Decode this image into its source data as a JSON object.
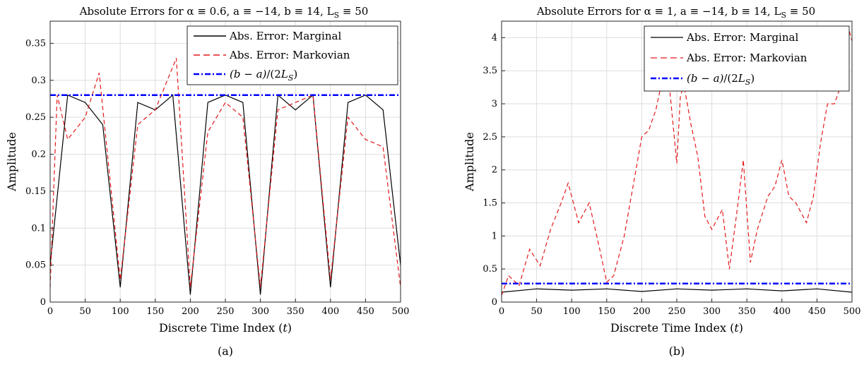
{
  "chart_data": [
    {
      "type": "line",
      "title": "Absolute Errors for α ≡ 0.6, a ≡ −14, b ≡ 14, L",
      "title_sub": "S",
      "title_tail": " ≡ 50",
      "xlabel": "Discrete Time Index (t)",
      "ylabel": "Amplitude",
      "xlim": [
        0,
        500
      ],
      "ylim": [
        0,
        0.38
      ],
      "xticks": [
        0,
        50,
        100,
        150,
        200,
        250,
        300,
        350,
        400,
        450,
        500
      ],
      "yticks": [
        0,
        0.05,
        0.1,
        0.15,
        0.2,
        0.25,
        0.3,
        0.35
      ],
      "ytick_labels": [
        "0",
        "0.05",
        "0.1",
        "0.15",
        "0.2",
        "0.25",
        "0.3",
        "0.35"
      ],
      "grid": true,
      "legend_position": "top-right",
      "caption": "(a)",
      "series": [
        {
          "name": "Abs. Error: Marginal",
          "color": "#000000",
          "style": "solid",
          "x": [
            0,
            25,
            50,
            75,
            100,
            125,
            150,
            175,
            200,
            225,
            250,
            275,
            300,
            325,
            350,
            375,
            400,
            425,
            450,
            475,
            500
          ],
          "y": [
            0.05,
            0.28,
            0.27,
            0.24,
            0.02,
            0.27,
            0.26,
            0.28,
            0.01,
            0.27,
            0.28,
            0.27,
            0.01,
            0.28,
            0.26,
            0.28,
            0.02,
            0.27,
            0.28,
            0.26,
            0.05
          ]
        },
        {
          "name": "Abs. Error: Markovian",
          "color": "#e41a1c",
          "style": "dashed",
          "x": [
            0,
            10,
            25,
            50,
            70,
            100,
            125,
            150,
            180,
            200,
            225,
            250,
            275,
            300,
            325,
            350,
            375,
            400,
            425,
            450,
            475,
            500
          ],
          "y": [
            0.02,
            0.28,
            0.22,
            0.25,
            0.31,
            0.03,
            0.24,
            0.26,
            0.33,
            0.02,
            0.23,
            0.27,
            0.25,
            0.02,
            0.26,
            0.27,
            0.28,
            0.03,
            0.25,
            0.22,
            0.21,
            0.02
          ]
        },
        {
          "name": "(b − a)/(2L_S)",
          "color": "#0000ff",
          "style": "dashdot",
          "x": [
            0,
            500
          ],
          "y": [
            0.28,
            0.28
          ]
        }
      ]
    },
    {
      "type": "line",
      "title": "Absolute Errors for α ≡ 1, a ≡ −14, b ≡ 14, L",
      "title_sub": "S",
      "title_tail": " ≡ 50",
      "xlabel": "Discrete Time Index (t)",
      "ylabel": "Amplitude",
      "xlim": [
        0,
        500
      ],
      "ylim": [
        0,
        4.25
      ],
      "xticks": [
        0,
        50,
        100,
        150,
        200,
        250,
        300,
        350,
        400,
        450,
        500
      ],
      "yticks": [
        0,
        0.5,
        1,
        1.5,
        2,
        2.5,
        3,
        3.5,
        4
      ],
      "ytick_labels": [
        "0",
        "0.5",
        "1",
        "1.5",
        "2",
        "2.5",
        "3",
        "3.5",
        "4"
      ],
      "grid": true,
      "legend_position": "top-right",
      "caption": "(b)",
      "series": [
        {
          "name": "Abs. Error: Marginal",
          "color": "#000000",
          "style": "solid",
          "x": [
            0,
            50,
            100,
            150,
            200,
            250,
            300,
            350,
            400,
            450,
            500
          ],
          "y": [
            0.15,
            0.2,
            0.18,
            0.2,
            0.16,
            0.2,
            0.18,
            0.2,
            0.17,
            0.2,
            0.15
          ]
        },
        {
          "name": "Abs. Error: Markovian",
          "color": "#e41a1c",
          "style": "dashed",
          "x": [
            0,
            10,
            25,
            40,
            55,
            70,
            85,
            95,
            110,
            125,
            140,
            150,
            160,
            175,
            190,
            200,
            210,
            220,
            230,
            240,
            250,
            255,
            260,
            270,
            280,
            290,
            300,
            315,
            325,
            335,
            345,
            355,
            365,
            380,
            390,
            400,
            410,
            420,
            435,
            445,
            455,
            465,
            475,
            485,
            495,
            500
          ],
          "y": [
            0.1,
            0.4,
            0.25,
            0.8,
            0.55,
            1.1,
            1.5,
            1.8,
            1.2,
            1.5,
            0.8,
            0.3,
            0.4,
            1.0,
            1.9,
            2.5,
            2.6,
            2.9,
            3.4,
            3.2,
            2.1,
            3.1,
            3.3,
            2.7,
            2.2,
            1.3,
            1.1,
            1.4,
            0.5,
            1.3,
            2.15,
            0.6,
            1.1,
            1.6,
            1.75,
            2.15,
            1.6,
            1.5,
            1.2,
            1.6,
            2.4,
            3.0,
            3.0,
            3.3,
            4.15,
            3.95
          ]
        },
        {
          "name": "(b − a)/(2L_S)",
          "color": "#0000ff",
          "style": "dashdot",
          "x": [
            0,
            500
          ],
          "y": [
            0.28,
            0.28
          ]
        }
      ]
    }
  ]
}
